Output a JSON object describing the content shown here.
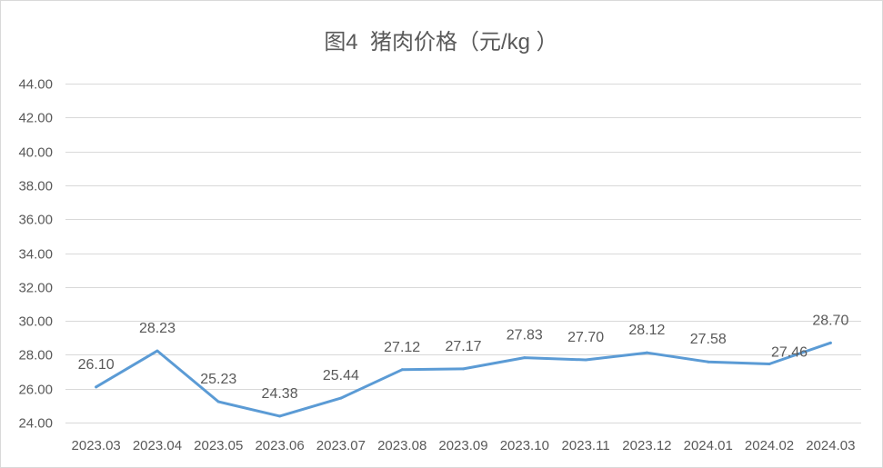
{
  "chart_data": {
    "type": "line",
    "title": "图4  猪肉价格（元/kg ）",
    "xlabel": "",
    "ylabel": "",
    "categories": [
      "2023.03",
      "2023.04",
      "2023.05",
      "2023.06",
      "2023.07",
      "2023.08",
      "2023.09",
      "2023.10",
      "2023.11",
      "2023.12",
      "2024.01",
      "2024.02",
      "2024.03"
    ],
    "series": [
      {
        "values": [
          26.1,
          28.23,
          25.23,
          24.38,
          25.44,
          27.12,
          27.17,
          27.83,
          27.7,
          28.12,
          27.58,
          27.46,
          28.7
        ],
        "color": "#5B9BD5"
      }
    ],
    "data_labels": [
      "26.10",
      "28.23",
      "25.23",
      "24.38",
      "25.44",
      "27.12",
      "27.17",
      "27.83",
      "27.70",
      "28.12",
      "27.58",
      "27.46",
      "28.70"
    ],
    "ylim": [
      24,
      44
    ],
    "y_ticks": [
      "24.00",
      "26.00",
      "28.00",
      "30.00",
      "32.00",
      "34.00",
      "36.00",
      "38.00",
      "40.00",
      "42.00",
      "44.00"
    ],
    "grid": "horizontal",
    "legend": "none",
    "colors": {
      "line": "#5B9BD5",
      "text": "#595959",
      "grid": "#D9D9D9",
      "border": "#D9D9D9"
    }
  }
}
